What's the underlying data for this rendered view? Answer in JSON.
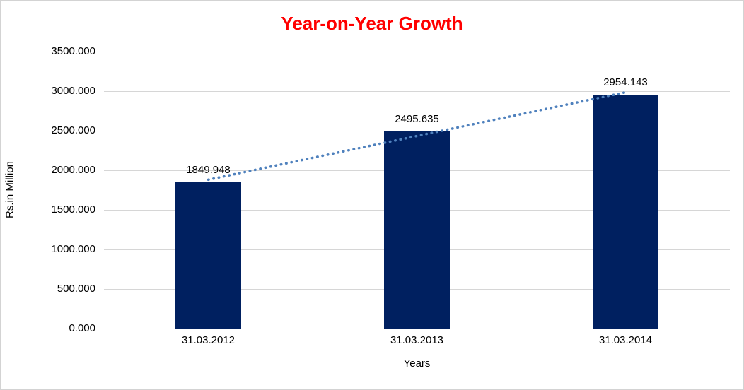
{
  "chart_data": {
    "type": "bar",
    "title": "Year-on-Year Growth",
    "categories": [
      "31.03.2012",
      "31.03.2013",
      "31.03.2014"
    ],
    "values": [
      1849.948,
      2495.635,
      2954.143
    ],
    "data_labels": [
      "1849.948",
      "2495.635",
      "2954.143"
    ],
    "xlabel": "Years",
    "ylabel": "Rs.in Million",
    "ylim": [
      0,
      3500
    ],
    "yticks": [
      {
        "value": 0,
        "label": "0.000"
      },
      {
        "value": 500,
        "label": "500.000"
      },
      {
        "value": 1000,
        "label": "1000.000"
      },
      {
        "value": 1500,
        "label": "1500.000"
      },
      {
        "value": 2000,
        "label": "2000.000"
      },
      {
        "value": 2500,
        "label": "2500.000"
      },
      {
        "value": 3000,
        "label": "3000.000"
      },
      {
        "value": 3500,
        "label": "3500.000"
      }
    ],
    "grid": true,
    "legend": "none",
    "trendline": {
      "type": "linear",
      "style": "dotted",
      "endpoint_values": [
        1881.145,
        2985.341
      ]
    },
    "colors": {
      "title": "#FF0000",
      "bar": "#002060",
      "trendline": "#4F81BD",
      "gridline": "#D6D6D6",
      "axis_line": "#BFBFBF",
      "text": "#000000",
      "border": "#D3D3D3"
    }
  }
}
